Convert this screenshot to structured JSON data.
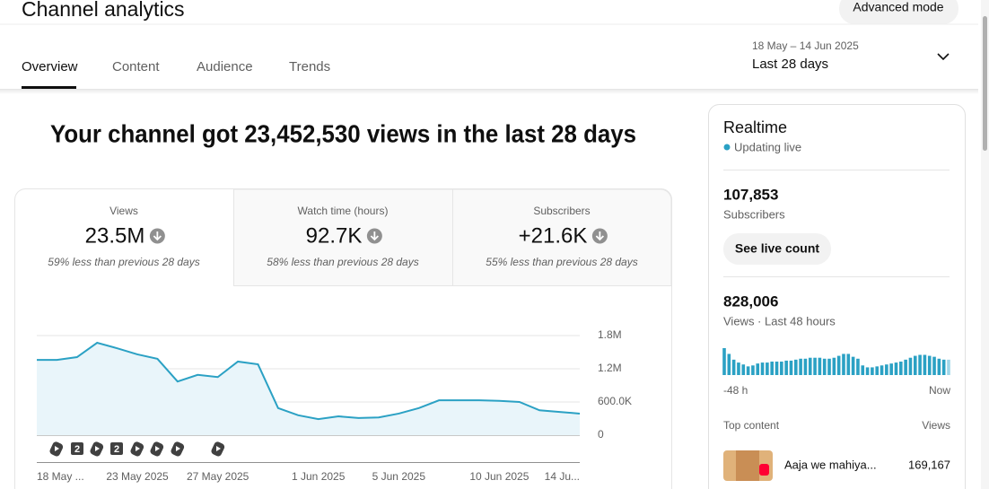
{
  "header": {
    "title": "Channel analytics",
    "advanced": "Advanced mode",
    "tabs": [
      "Overview",
      "Content",
      "Audience",
      "Trends"
    ],
    "date_range": "18 May – 14 Jun 2025",
    "period": "Last 28 days"
  },
  "headline": "Your channel got 23,452,530 views in the last 28 days",
  "metrics": [
    {
      "label": "Views",
      "value": "23.5M",
      "note": "59% less than previous 28 days"
    },
    {
      "label": "Watch time (hours)",
      "value": "92.7K",
      "note": "58% less than previous 28 days"
    },
    {
      "label": "Subscribers",
      "value": "+21.6K",
      "note": "55% less than previous 28 days"
    }
  ],
  "chart_markers": [
    "2",
    "2"
  ],
  "realtime": {
    "title": "Realtime",
    "status": "Updating live",
    "subscribers": "107,853",
    "subscribers_label": "Subscribers",
    "button": "See live count",
    "views": "828,006",
    "views_label": "Views · Last 48 hours",
    "start_label": "-48 h",
    "end_label": "Now",
    "top_content": "Top content",
    "top_views_header": "Views",
    "top_items": [
      {
        "title": "Aaja we mahiya...",
        "views": "169,167"
      }
    ]
  },
  "chart_data": [
    {
      "type": "line",
      "color": "#2ba1c4",
      "fill": "#e9f5fa",
      "grid": true,
      "categories": [
        "18 May ...",
        null,
        null,
        null,
        null,
        "23 May 2025",
        null,
        null,
        null,
        "27 May 2025",
        null,
        null,
        null,
        null,
        "1 Jun 2025",
        null,
        null,
        null,
        "5 Jun 2025",
        null,
        null,
        null,
        null,
        "10 Jun 2025",
        null,
        null,
        null,
        "14 Ju..."
      ],
      "values": [
        1360000,
        1360000,
        1410000,
        1670000,
        1570000,
        1460000,
        1380000,
        970000,
        1090000,
        1050000,
        1330000,
        1280000,
        490000,
        360000,
        290000,
        340000,
        310000,
        320000,
        390000,
        490000,
        630000,
        630000,
        630000,
        620000,
        600000,
        450000,
        420000,
        390000
      ],
      "ylim": [
        0,
        1800000
      ],
      "yticks": [
        0,
        {
          "value": 600000,
          "label": "600.0K"
        },
        {
          "value": 1200000,
          "label": "1.2M"
        },
        {
          "value": 1800000,
          "label": "1.8M"
        }
      ]
    },
    {
      "type": "bar",
      "color": "#2ba1c4",
      "current_color": "#9fd6e8",
      "values": [
        30800,
        24200,
        17600,
        14300,
        12100,
        9900,
        11000,
        13200,
        14300,
        14300,
        15400,
        15400,
        15400,
        16500,
        16500,
        17600,
        18700,
        18700,
        19800,
        19800,
        19800,
        18700,
        18700,
        19800,
        22000,
        24200,
        24200,
        20900,
        18700,
        11000,
        8800,
        8800,
        9900,
        11000,
        12100,
        13200,
        14300,
        15400,
        17600,
        19800,
        22000,
        23100,
        23100,
        22000,
        20900,
        18700,
        17600,
        17600
      ]
    }
  ]
}
